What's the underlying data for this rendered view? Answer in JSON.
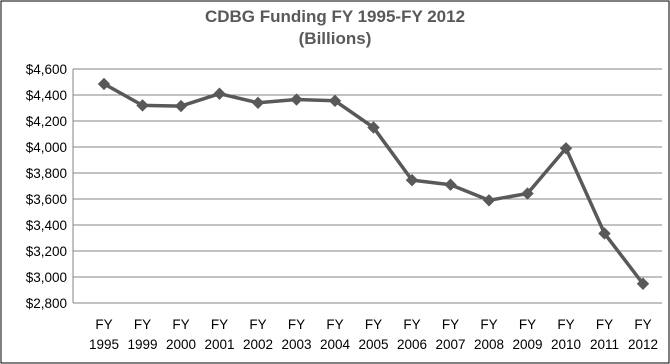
{
  "chart_data": {
    "type": "line",
    "title_lines": [
      "CDBG Funding FY 1995-FY 2012",
      "(Billions)"
    ],
    "categories": [
      [
        "FY",
        "1995"
      ],
      [
        "FY",
        "1999"
      ],
      [
        "FY",
        "2000"
      ],
      [
        "FY",
        "2001"
      ],
      [
        "FY",
        "2002"
      ],
      [
        "FY",
        "2003"
      ],
      [
        "FY",
        "2004"
      ],
      [
        "FY",
        "2005"
      ],
      [
        "FY",
        "2006"
      ],
      [
        "FY",
        "2007"
      ],
      [
        "FY",
        "2008"
      ],
      [
        "FY",
        "2009"
      ],
      [
        "FY",
        "2010"
      ],
      [
        "FY",
        "2011"
      ],
      [
        "FY",
        "2012"
      ]
    ],
    "values": [
      4485,
      4320,
      4315,
      4410,
      4340,
      4365,
      4355,
      4150,
      3745,
      3710,
      3590,
      3642,
      3990,
      3335,
      2948
    ],
    "yticks": [
      "$2,800",
      "$3,000",
      "$3,200",
      "$3,400",
      "$3,600",
      "$3,800",
      "$4,000",
      "$4,200",
      "$4,400",
      "$4,600"
    ],
    "ylim": [
      2800,
      4600
    ],
    "xlabel": "",
    "ylabel": "",
    "grid": "horizontal",
    "legend": "none",
    "marker": "diamond",
    "colors": {
      "line": "#595959",
      "grid": "#868686",
      "axis": "#868686",
      "border": "#000000"
    }
  }
}
